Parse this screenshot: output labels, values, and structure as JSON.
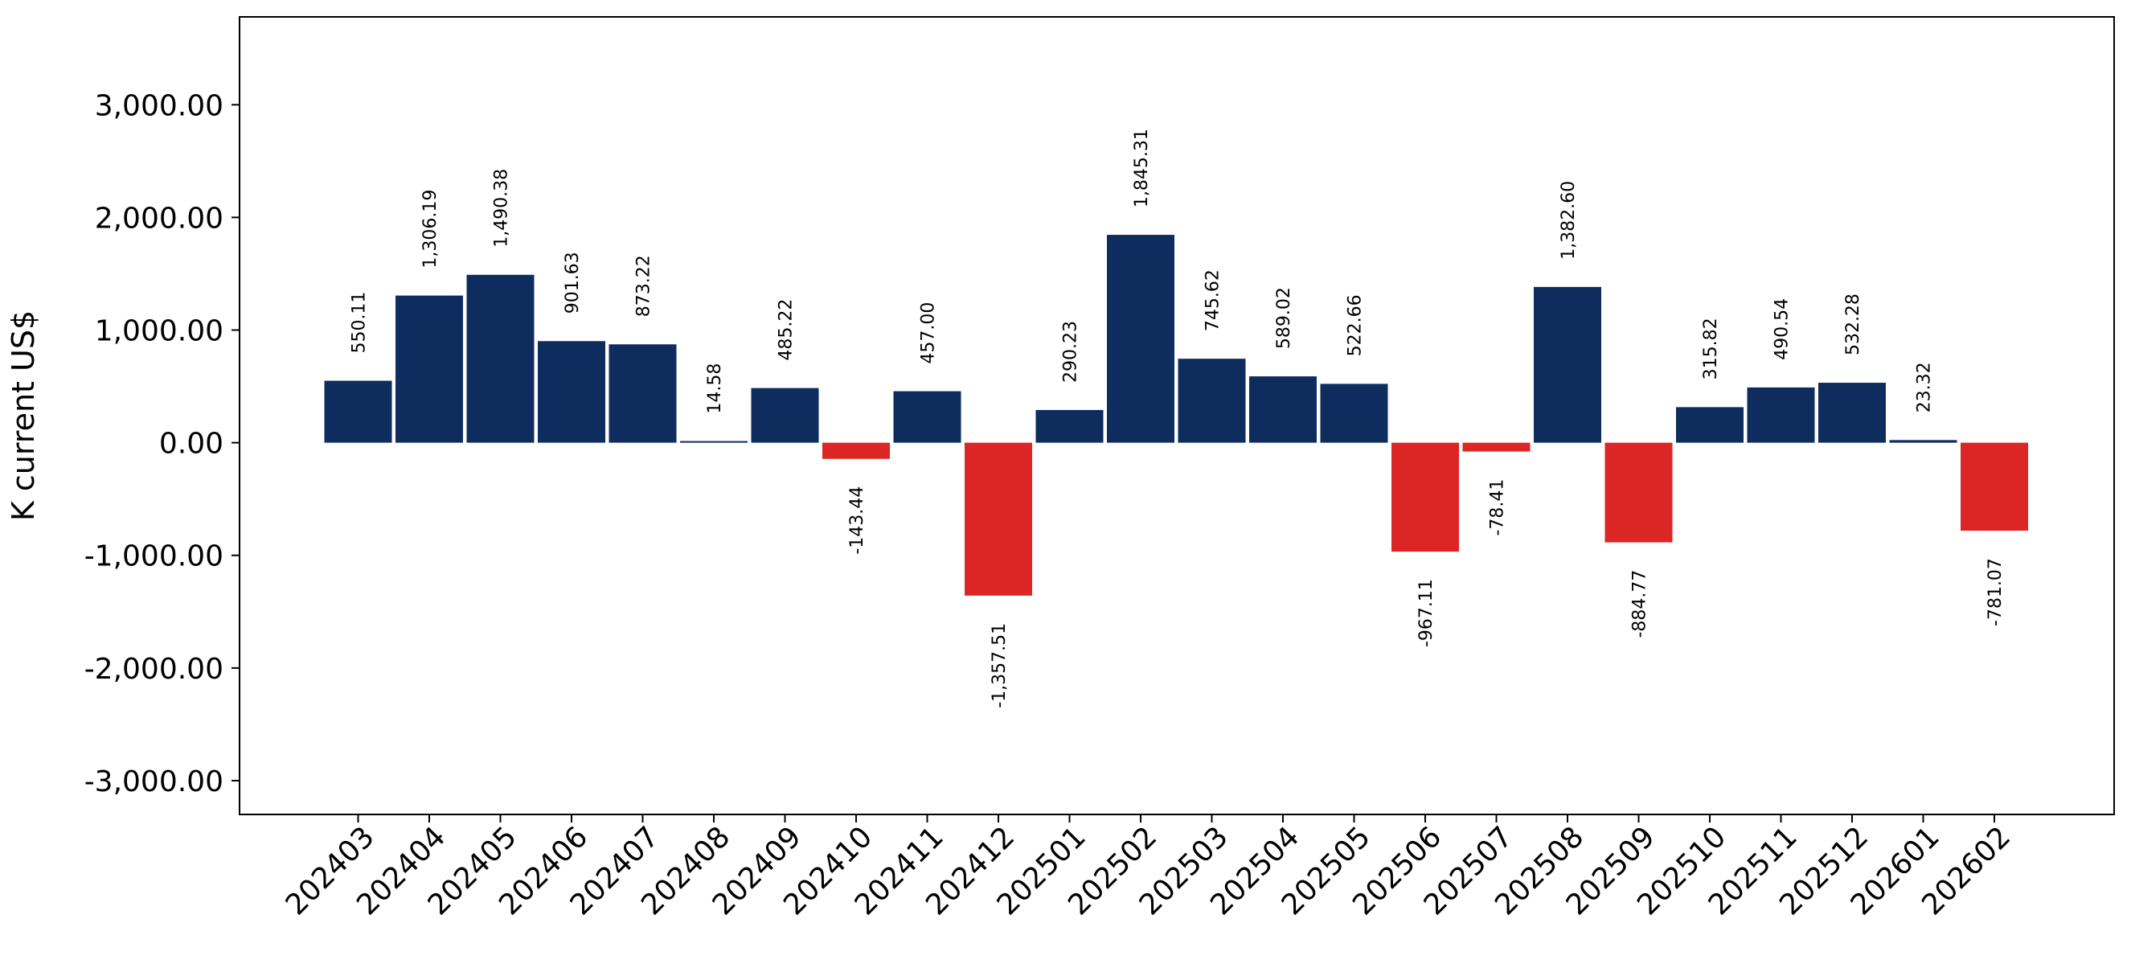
{
  "chart_data": {
    "type": "bar",
    "ylabel": "K current US$",
    "xlabel": "",
    "title": "",
    "ylim": [
      -3000,
      3000
    ],
    "ymin_visible": -3300,
    "ymax_visible": 3780,
    "yticks": [
      -3000,
      -2000,
      -1000,
      0,
      1000,
      2000,
      3000
    ],
    "ytick_labels": [
      "-3,000.00",
      "-2,000.00",
      "-1,000.00",
      "0.00",
      "1,000.00",
      "2,000.00",
      "3,000.00"
    ],
    "categories": [
      "202403",
      "202404",
      "202405",
      "202406",
      "202407",
      "202408",
      "202409",
      "202410",
      "202411",
      "202412",
      "202501",
      "202502",
      "202503",
      "202504",
      "202505",
      "202506",
      "202507",
      "202508",
      "202509",
      "202510",
      "202511",
      "202512",
      "202601",
      "202602"
    ],
    "values": [
      550.11,
      1306.19,
      1490.38,
      901.63,
      873.22,
      14.58,
      485.22,
      -143.44,
      457.0,
      -1357.51,
      290.23,
      1845.31,
      745.62,
      589.02,
      522.66,
      -967.11,
      -78.41,
      1382.6,
      -884.77,
      315.82,
      490.54,
      532.28,
      23.32,
      -781.07
    ],
    "value_labels": [
      "550.11",
      "1,306.19",
      "1,490.38",
      "901.63",
      "873.22",
      "14.58",
      "485.22",
      "-143.44",
      "457.00",
      "-1,357.51",
      "290.23",
      "1,845.31",
      "745.62",
      "589.02",
      "522.66",
      "-967.11",
      "-78.41",
      "1,382.60",
      "-884.77",
      "315.82",
      "490.54",
      "532.28",
      "23.32",
      "-781.07"
    ],
    "colors": {
      "positive": "#0e2d5e",
      "negative": "#dc2626",
      "axis": "#000000"
    },
    "grid": false,
    "legend": "none"
  }
}
